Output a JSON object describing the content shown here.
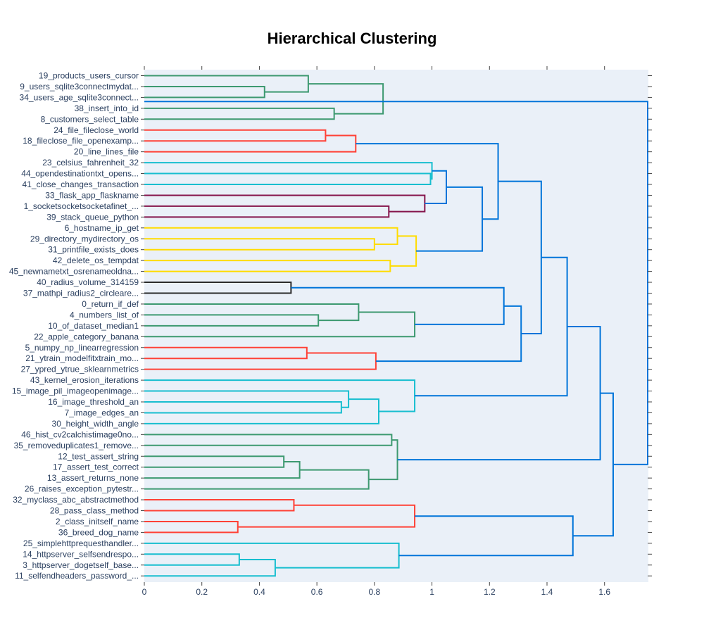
{
  "chart_data": {
    "type": "dendrogram",
    "title": "Hierarchical Clustering",
    "orientation": "horizontal",
    "xlim": [
      0,
      1.75
    ],
    "x_ticks": [
      "0",
      "0.2",
      "0.4",
      "0.6",
      "0.8",
      "1",
      "1.2",
      "1.4",
      "1.6"
    ],
    "leaves": [
      "19_products_users_cursor",
      "9_users_sqlite3connectmydat...",
      "34_users_age_sqlite3connect...",
      "38_insert_into_id",
      "8_customers_select_table",
      "24_file_fileclose_world",
      "18_fileclose_file_openexamp...",
      "20_line_lines_file",
      "23_celsius_fahrenheit_32",
      "44_opendestinationtxt_opens...",
      "41_close_changes_transaction",
      "33_flask_app_flaskname",
      "1_socketsocketsocketafinet_...",
      "39_stack_queue_python",
      "6_hostname_ip_get",
      "29_directory_mydirectory_os",
      "31_printfile_exists_does",
      "42_delete_os_tempdat",
      "45_newnametxt_osrenameoldna...",
      "40_radius_volume_314159",
      "37_mathpi_radius2_circleare...",
      "0_return_if_def",
      "4_numbers_list_of",
      "10_of_dataset_median1",
      "22_apple_category_banana",
      "5_numpy_np_linearregression",
      "21_ytrain_modelfitxtrain_mo...",
      "27_ypred_ytrue_sklearnmetrics",
      "43_kernel_erosion_iterations",
      "15_image_pil_imageopenimage...",
      "16_image_threshold_an",
      "7_image_edges_an",
      "30_height_width_angle",
      "46_hist_cv2calchistimage0no...",
      "35_removeduplicates1_remove...",
      "12_test_assert_string",
      "17_assert_test_correct",
      "13_assert_returns_none",
      "26_raises_exception_pytestr...",
      "32_myclass_abc_abstractmethod",
      "28_pass_class_method",
      "2_class_initself_name",
      "36_breed_dog_name",
      "25_simplehttprequesthandler...",
      "14_httpserver_selfsendrespo...",
      "3_httpserver_dogetself_base...",
      "11_selfendheaders_password_..."
    ],
    "merges": [
      {
        "a": [
          1
        ],
        "b": [
          2
        ],
        "d": 0.418,
        "color": "#3d9970"
      },
      {
        "a": [
          0
        ],
        "b": [
          1.5
        ],
        "d": 0.57,
        "color": "#3d9970"
      },
      {
        "a": [
          3
        ],
        "b": [
          4
        ],
        "d": 0.66,
        "color": "#3d9970"
      },
      {
        "a": [
          0.75
        ],
        "b": [
          3.5
        ],
        "d": 0.83,
        "color": "#3d9970"
      },
      {
        "a": [
          5
        ],
        "b": [
          6
        ],
        "d": 0.63,
        "color": "#ff4136"
      },
      {
        "a": [
          5.5
        ],
        "b": [
          7
        ],
        "d": 0.735,
        "color": "#ff4136"
      },
      {
        "a": [
          9
        ],
        "b": [
          10
        ],
        "d": 0.995,
        "color": "#17becf"
      },
      {
        "a": [
          8
        ],
        "b": [
          9.5
        ],
        "d": 1.0,
        "color": "#17becf"
      },
      {
        "a": [
          12
        ],
        "b": [
          13
        ],
        "d": 0.85,
        "color": "#85144b"
      },
      {
        "a": [
          11
        ],
        "b": [
          12.5
        ],
        "d": 0.975,
        "color": "#85144b"
      },
      {
        "a": [
          8.75
        ],
        "b": [
          11.75
        ],
        "d": 1.05,
        "color": "#0074d9"
      },
      {
        "a": [
          15
        ],
        "b": [
          16
        ],
        "d": 0.8,
        "color": "#ffdc00"
      },
      {
        "a": [
          14
        ],
        "b": [
          15.5
        ],
        "d": 0.88,
        "color": "#ffdc00"
      },
      {
        "a": [
          17
        ],
        "b": [
          18
        ],
        "d": 0.855,
        "color": "#ffdc00"
      },
      {
        "a": [
          14.75
        ],
        "b": [
          17.5
        ],
        "d": 0.945,
        "color": "#ffdc00"
      },
      {
        "a": [
          10.25
        ],
        "b": [
          16.125
        ],
        "d": 1.175,
        "color": "#0074d9"
      },
      {
        "a": [
          6.25
        ],
        "b": [
          13.1875
        ],
        "d": 1.23,
        "color": "#0074d9"
      },
      {
        "a": [
          19
        ],
        "b": [
          20
        ],
        "d": 0.51,
        "color": "#2b2b2b"
      },
      {
        "a": [
          22
        ],
        "b": [
          23
        ],
        "d": 0.605,
        "color": "#3d9970"
      },
      {
        "a": [
          21
        ],
        "b": [
          22.5
        ],
        "d": 0.745,
        "color": "#3d9970"
      },
      {
        "a": [
          21.75
        ],
        "b": [
          24
        ],
        "d": 0.94,
        "color": "#3d9970"
      },
      {
        "a": [
          19.5
        ],
        "b": [
          22.875
        ],
        "d": 1.25,
        "color": "#0074d9"
      },
      {
        "a": [
          25
        ],
        "b": [
          26
        ],
        "d": 0.565,
        "color": "#ff4136"
      },
      {
        "a": [
          25.5
        ],
        "b": [
          27
        ],
        "d": 0.805,
        "color": "#ff4136"
      },
      {
        "a": [
          21.1875
        ],
        "b": [
          26.25
        ],
        "d": 1.31,
        "color": "#0074d9"
      },
      {
        "a": [
          9.71875
        ],
        "b": [
          23.71875
        ],
        "d": 1.38,
        "color": "#0074d9"
      },
      {
        "a": [
          30
        ],
        "b": [
          31
        ],
        "d": 0.685,
        "color": "#17becf"
      },
      {
        "a": [
          29
        ],
        "b": [
          30.5
        ],
        "d": 0.71,
        "color": "#17becf"
      },
      {
        "a": [
          29.75
        ],
        "b": [
          32
        ],
        "d": 0.815,
        "color": "#17becf"
      },
      {
        "a": [
          28
        ],
        "b": [
          30.875
        ],
        "d": 0.94,
        "color": "#17becf"
      },
      {
        "a": [
          16.71875
        ],
        "b": [
          29.4375
        ],
        "d": 1.47,
        "color": "#0074d9"
      },
      {
        "a": [
          33
        ],
        "b": [
          34
        ],
        "d": 0.86,
        "color": "#3d9970"
      },
      {
        "a": [
          35
        ],
        "b": [
          36
        ],
        "d": 0.485,
        "color": "#3d9970"
      },
      {
        "a": [
          35.5
        ],
        "b": [
          37
        ],
        "d": 0.54,
        "color": "#3d9970"
      },
      {
        "a": [
          36.25
        ],
        "b": [
          38
        ],
        "d": 0.78,
        "color": "#3d9970"
      },
      {
        "a": [
          33.5
        ],
        "b": [
          37.125
        ],
        "d": 0.88,
        "color": "#3d9970"
      },
      {
        "a": [
          23.078125
        ],
        "b": [
          35.3125
        ],
        "d": 1.585,
        "color": "#0074d9"
      },
      {
        "a": [
          39
        ],
        "b": [
          40
        ],
        "d": 0.52,
        "color": "#ff4136"
      },
      {
        "a": [
          41
        ],
        "b": [
          42
        ],
        "d": 0.325,
        "color": "#ff4136"
      },
      {
        "a": [
          39.5
        ],
        "b": [
          41.5
        ],
        "d": 0.94,
        "color": "#ff4136"
      },
      {
        "a": [
          44
        ],
        "b": [
          45
        ],
        "d": 0.33,
        "color": "#17becf"
      },
      {
        "a": [
          44.5
        ],
        "b": [
          46
        ],
        "d": 0.455,
        "color": "#17becf"
      },
      {
        "a": [
          43
        ],
        "b": [
          45.25
        ],
        "d": 0.885,
        "color": "#17becf"
      },
      {
        "a": [
          40.5
        ],
        "b": [
          44.125
        ],
        "d": 1.49,
        "color": "#0074d9"
      },
      {
        "a": [
          29.1953125
        ],
        "b": [
          42.3125
        ],
        "d": 1.63,
        "color": "#0074d9"
      },
      {
        "a": [
          2.375
        ],
        "b": [
          35.75390625
        ],
        "d": 1.75,
        "color": "#0074d9"
      }
    ]
  }
}
